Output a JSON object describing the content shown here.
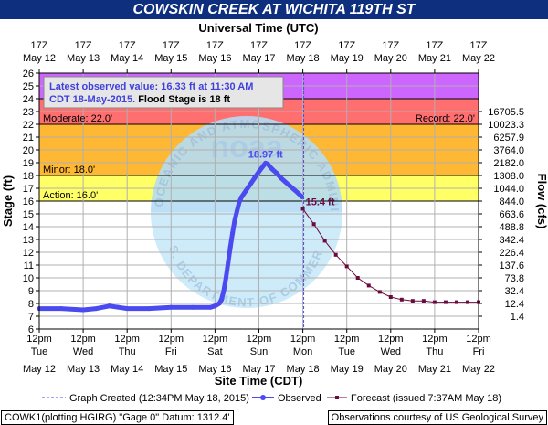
{
  "title": "COWSKIN CREEK AT WICHITA 119TH ST",
  "top_axis_title": "Universal Time (UTC)",
  "bottom_axis_title": "Site Time (CDT)",
  "left_axis_title": "Stage (ft)",
  "right_axis_title": "Flow (cfs)",
  "top_ticks": [
    {
      "l1": "17Z",
      "l2": "May 12"
    },
    {
      "l1": "17Z",
      "l2": "May 13"
    },
    {
      "l1": "17Z",
      "l2": "May 14"
    },
    {
      "l1": "17Z",
      "l2": "May 15"
    },
    {
      "l1": "17Z",
      "l2": "May 16"
    },
    {
      "l1": "17Z",
      "l2": "May 17"
    },
    {
      "l1": "17Z",
      "l2": "May 18"
    },
    {
      "l1": "17Z",
      "l2": "May 19"
    },
    {
      "l1": "17Z",
      "l2": "May 20"
    },
    {
      "l1": "17Z",
      "l2": "May 21"
    },
    {
      "l1": "17Z",
      "l2": "May 22"
    }
  ],
  "bottom_ticks": [
    {
      "l1": "12pm",
      "l2": "Tue",
      "l3": "May 12"
    },
    {
      "l1": "12pm",
      "l2": "Wed",
      "l3": "May 13"
    },
    {
      "l1": "12pm",
      "l2": "Thu",
      "l3": "May 14"
    },
    {
      "l1": "12pm",
      "l2": "Fri",
      "l3": "May 15"
    },
    {
      "l1": "12pm",
      "l2": "Sat",
      "l3": "May 16"
    },
    {
      "l1": "12pm",
      "l2": "Sun",
      "l3": "May 17"
    },
    {
      "l1": "12pm",
      "l2": "Mon",
      "l3": "May 18"
    },
    {
      "l1": "12pm",
      "l2": "Tue",
      "l3": "May 19"
    },
    {
      "l1": "12pm",
      "l2": "Wed",
      "l3": "May 20"
    },
    {
      "l1": "12pm",
      "l2": "Thu",
      "l3": "May 21"
    },
    {
      "l1": "12pm",
      "l2": "Fri",
      "l3": "May 22"
    }
  ],
  "latest_box": {
    "line1": "Latest observed value: 16.33 ft at 11:30 AM",
    "line2a": "CDT 18-May-2015.",
    "line2b": " Flood Stage is 18 ft"
  },
  "legend": {
    "created": "Graph Created (12:34PM May 18, 2015)",
    "observed": "Observed",
    "forecast": "Forecast (issued 7:37AM May 18)"
  },
  "footer": {
    "left": "COWK1(plotting HGIRG) \"Gage 0\" Datum: 1312.4'",
    "right": "Observations courtesy of US Geological Survey"
  },
  "watermark": {
    "logo": "noaa",
    "text_top": "NATIONAL OCEANIC AND ATMOSPHERIC ADMINISTRATION",
    "text_bottom": "U.S. DEPARTMENT OF COMMERCE"
  },
  "colors": {
    "title_bg": "#0d2f7e",
    "observed": "#4a4af0",
    "forecast": "#6a0a3e",
    "major": "#cc66ff",
    "moderate": "#ff6f6f",
    "minor": "#ffb833",
    "action": "#ffff66",
    "latest_text": "#4040dd"
  },
  "chart_data": {
    "type": "line",
    "x_unit": "days after May 12 12pm CDT",
    "ylim": [
      6,
      26
    ],
    "y_ticks": [
      6,
      7,
      8,
      9,
      10,
      11,
      12,
      13,
      14,
      15,
      16,
      17,
      18,
      19,
      20,
      21,
      22,
      23,
      24,
      25,
      26
    ],
    "flow_ticks": [
      {
        "stage": 7,
        "label": "1.4"
      },
      {
        "stage": 8,
        "label": "12.4"
      },
      {
        "stage": 9,
        "label": "32.4"
      },
      {
        "stage": 10,
        "label": "73.8"
      },
      {
        "stage": 11,
        "label": "137.6"
      },
      {
        "stage": 12,
        "label": "226.4"
      },
      {
        "stage": 13,
        "label": "342.4"
      },
      {
        "stage": 14,
        "label": "488.8"
      },
      {
        "stage": 15,
        "label": "663.6"
      },
      {
        "stage": 16,
        "label": "844.0"
      },
      {
        "stage": 17,
        "label": "1044.0"
      },
      {
        "stage": 18,
        "label": "1308.0"
      },
      {
        "stage": 19,
        "label": "2182.0"
      },
      {
        "stage": 20,
        "label": "3764.0"
      },
      {
        "stage": 21,
        "label": "6257.9"
      },
      {
        "stage": 22,
        "label": "10023.3"
      },
      {
        "stage": 23,
        "label": "16705.5"
      }
    ],
    "bands": [
      {
        "name": "Major",
        "from": 24,
        "to": 26
      },
      {
        "name": "Moderate",
        "from": 22,
        "to": 24
      },
      {
        "name": "Minor",
        "from": 18,
        "to": 22
      },
      {
        "name": "Action",
        "from": 16,
        "to": 18
      }
    ],
    "thresholds": [
      {
        "label": "Moderate: 22.0'",
        "value": 22
      },
      {
        "label": "Minor: 18.0'",
        "value": 18
      },
      {
        "label": "Action: 16.0'",
        "value": 16
      }
    ],
    "record_label": "Record: 22.0'",
    "graph_created_x": 6.02,
    "observed": {
      "name": "Observed",
      "x": [
        0,
        0.5,
        1,
        1.3,
        1.6,
        1.8,
        2,
        2.5,
        3,
        3.5,
        3.9,
        4.0,
        4.1,
        4.15,
        4.2,
        4.25,
        4.3,
        4.35,
        4.4,
        4.45,
        4.5,
        4.55,
        4.6,
        4.7,
        4.8,
        4.9,
        5.0,
        5.1,
        5.15,
        5.2,
        5.25,
        5.3,
        5.4,
        5.5,
        5.6,
        5.7,
        5.8,
        5.9,
        5.98
      ],
      "y": [
        7.6,
        7.6,
        7.5,
        7.6,
        7.8,
        7.7,
        7.6,
        7.6,
        7.7,
        7.7,
        7.7,
        7.8,
        8.0,
        8.3,
        9.0,
        10.0,
        11.2,
        12.4,
        13.5,
        14.5,
        15.2,
        15.9,
        16.3,
        16.8,
        17.3,
        17.8,
        18.3,
        18.75,
        18.97,
        18.9,
        18.7,
        18.5,
        18.2,
        17.8,
        17.5,
        17.2,
        16.9,
        16.6,
        16.33
      ]
    },
    "forecast": {
      "name": "Forecast",
      "x": [
        6.0,
        6.25,
        6.5,
        6.75,
        7.0,
        7.25,
        7.5,
        7.75,
        8.0,
        8.25,
        8.5,
        8.75,
        9.0,
        9.25,
        9.5,
        9.75,
        10.0
      ],
      "y": [
        15.4,
        14.2,
        12.9,
        11.8,
        10.9,
        10.0,
        9.4,
        8.9,
        8.5,
        8.3,
        8.2,
        8.2,
        8.1,
        8.1,
        8.1,
        8.1,
        8.1
      ]
    },
    "labels": [
      {
        "text": "18.97 ft",
        "x": 5.15,
        "y": 18.97
      },
      {
        "text": "15.4 ft",
        "x": 6.0,
        "y": 15.4
      }
    ]
  }
}
